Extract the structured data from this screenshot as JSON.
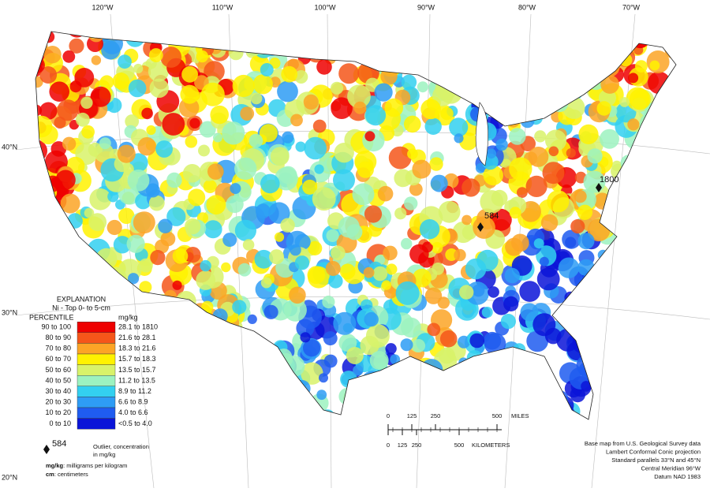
{
  "graticule": {
    "longitudes": [
      "120°W",
      "110°W",
      "100°W",
      "90°W",
      "80°W",
      "70°W"
    ],
    "latitudes": [
      "40°N",
      "30°N",
      "20°N"
    ]
  },
  "explanation": {
    "title": "EXPLANATION",
    "subtitle": "Ni - Top 0- to 5-cm",
    "percentile_header": "PERCENTILE",
    "unit_header": "mg/kg",
    "classes": [
      {
        "percentile": "90 to 100",
        "range": "28.1 to 1810",
        "color": "#ee0000"
      },
      {
        "percentile": "80 to 90",
        "range": "21.6 to 28.1",
        "color": "#f5561a"
      },
      {
        "percentile": "70 to 80",
        "range": "18.3 to 21.6",
        "color": "#fca526"
      },
      {
        "percentile": "60 to 70",
        "range": "15.7 to 18.3",
        "color": "#fff200"
      },
      {
        "percentile": "50 to 60",
        "range": "13.5 to 15.7",
        "color": "#d8f26a"
      },
      {
        "percentile": "40 to 50",
        "range": "11.2 to 13.5",
        "color": "#9cf2c0"
      },
      {
        "percentile": "30 to 40",
        "range": "8.9 to 11.2",
        "color": "#33d0f0"
      },
      {
        "percentile": "20 to 30",
        "range": "6.6 to 8.9",
        "color": "#2e9cf5"
      },
      {
        "percentile": "10 to 20",
        "range": "4.0 to 6.6",
        "color": "#1f5cf0"
      },
      {
        "percentile": "0 to 10",
        "range": "<0.5 to 4.0",
        "color": "#0a14d8"
      }
    ],
    "outlier_example": "584",
    "outlier_text": [
      "Outlier, concentration",
      "in mg/kg"
    ],
    "definitions": [
      {
        "term": "mg/kg",
        "text": ": milligrams per kilogram"
      },
      {
        "term": "cm",
        "text": ": centimeters"
      }
    ]
  },
  "outliers": [
    "584",
    "1800"
  ],
  "scale": {
    "miles": [
      "0",
      "125",
      "250",
      "500",
      "MILES"
    ],
    "kilometers": [
      "0",
      "125",
      "250",
      "500",
      "KILOMETERS"
    ]
  },
  "credits": [
    "Base map from U.S. Geological Survey data",
    "Lambert Conformal Conic projection",
    "Standard parallels 33°N and 45°N",
    "Central Meridian 96°W",
    "Datum NAD 1983"
  ]
}
